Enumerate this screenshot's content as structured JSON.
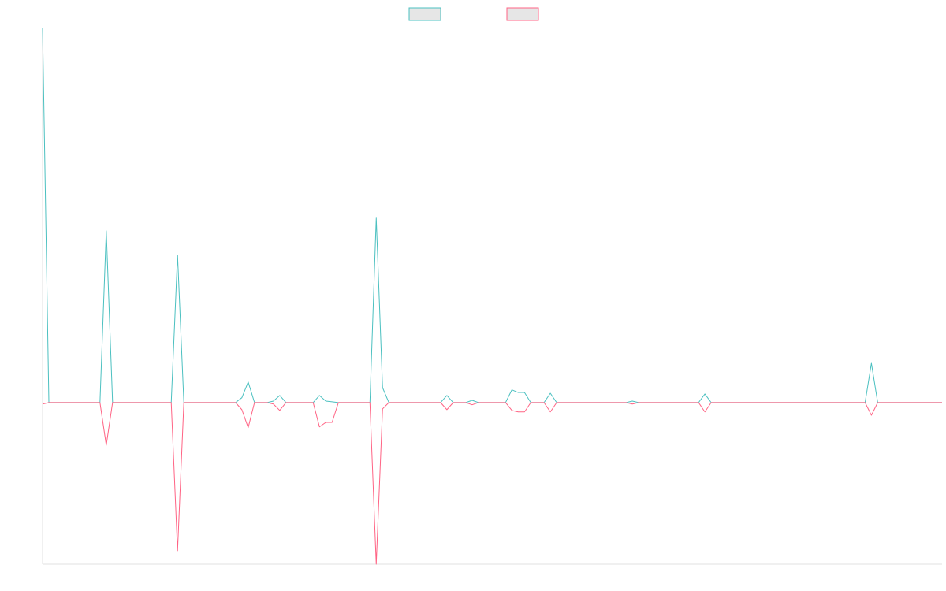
{
  "chart_data": {
    "type": "line",
    "x": [
      0,
      1,
      9.1,
      10.1,
      11.1,
      20.4,
      21.4,
      22.4,
      30.6,
      31.6,
      32.6,
      33.6,
      35.6,
      36.6,
      37.6,
      38.6,
      42.9,
      43.9,
      44.9,
      45.9,
      46.9,
      51.9,
      52.9,
      53.9,
      54.9,
      63.1,
      64.1,
      65.1,
      67.1,
      68.1,
      69.1,
      73.4,
      74.4,
      75.4,
      76.4,
      77.4,
      79.5,
      80.5,
      81.5,
      92.5,
      93.5,
      94.5,
      104,
      105,
      106,
      130.4,
      131.4,
      132.4,
      142.6
    ],
    "series": [
      {
        "color": "#4bc0c0",
        "values": [
          100,
          0,
          0,
          45.9,
          0,
          0,
          39.4,
          0,
          0,
          1.3,
          5.5,
          0,
          0,
          0.4,
          1.9,
          0,
          0,
          1.9,
          0.4,
          0.2,
          0,
          0,
          49.3,
          4.0,
          0,
          0,
          1.9,
          0,
          0,
          0.6,
          0,
          0,
          3.4,
          2.7,
          2.7,
          0,
          0,
          2.5,
          0,
          0,
          0.4,
          0,
          0,
          2.3,
          0,
          0,
          10.5,
          0,
          0
        ]
      },
      {
        "color": "#ff6384",
        "values": [
          -0.4,
          0,
          0,
          -11.4,
          0,
          0,
          -39.6,
          0,
          0,
          -1.9,
          -6.7,
          0,
          0,
          -0.4,
          -2.1,
          0,
          0,
          -6.5,
          -5.3,
          -5.3,
          0,
          0,
          -43.2,
          -1.7,
          0,
          0,
          -1.9,
          0,
          0,
          -0.6,
          0,
          0,
          -2.1,
          -2.5,
          -2.5,
          0,
          0,
          -2.5,
          0,
          0,
          -0.4,
          0,
          0,
          -2.5,
          0,
          0,
          -3.4,
          0,
          0
        ]
      }
    ],
    "xlim": [
      0,
      142.6
    ],
    "ylim": [
      -43.2,
      100
    ],
    "legend": "top",
    "legend_fill": "#e6e6e6"
  }
}
